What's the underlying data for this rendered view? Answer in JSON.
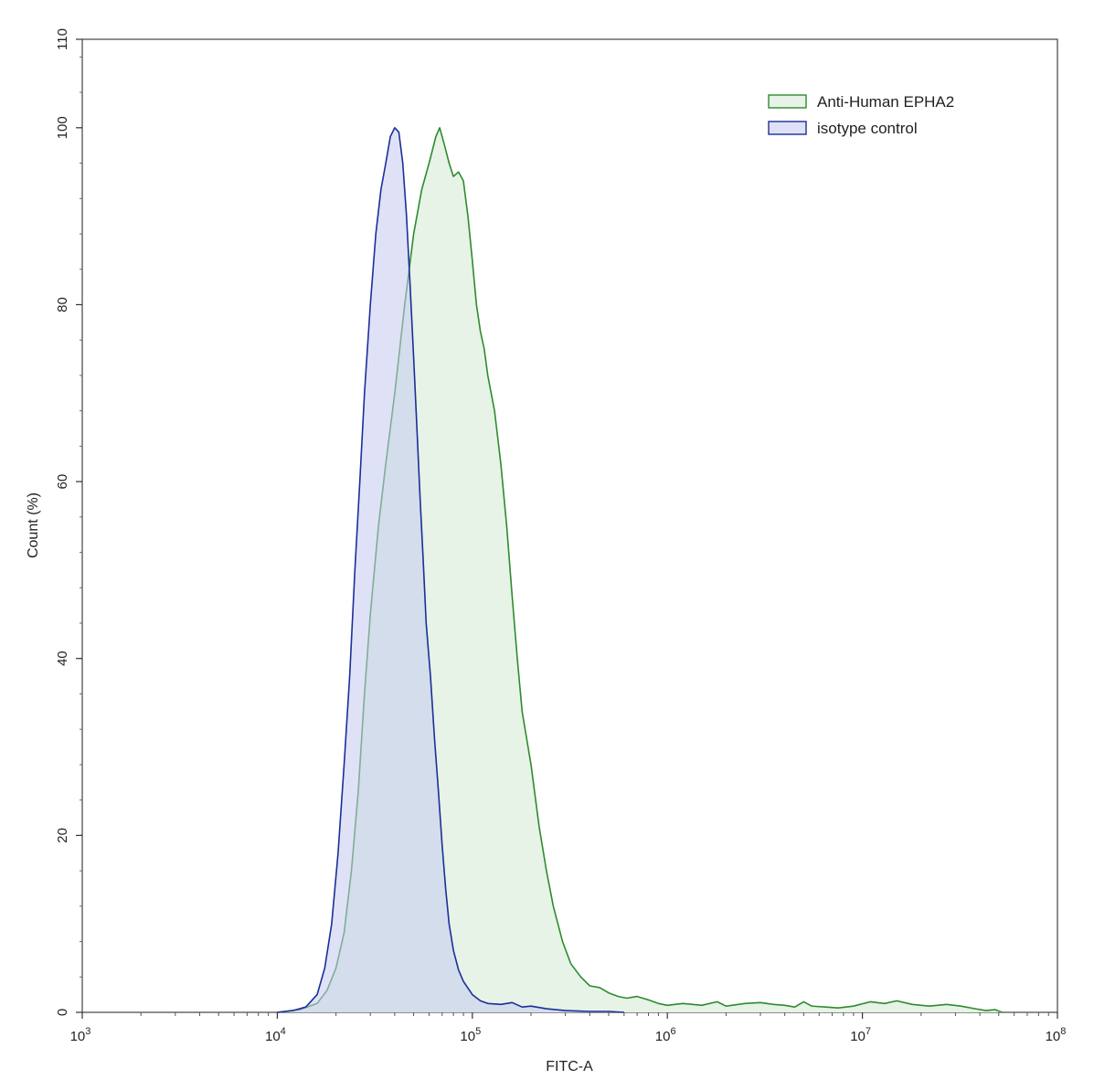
{
  "chart_data": {
    "type": "area",
    "title": "",
    "xlabel": "FITC-A",
    "ylabel": "Count  (%)",
    "x_scale": "log",
    "xlim": [
      1000,
      100000000
    ],
    "ylim": [
      0,
      110
    ],
    "x_ticks": [
      {
        "value": 1000,
        "base": "10",
        "exp": "3"
      },
      {
        "value": 10000,
        "base": "10",
        "exp": "4"
      },
      {
        "value": 100000,
        "base": "10",
        "exp": "5"
      },
      {
        "value": 1000000,
        "base": "10",
        "exp": "6"
      },
      {
        "value": 10000000,
        "base": "10",
        "exp": "7"
      },
      {
        "value": 100000000,
        "base": "10",
        "exp": "8"
      }
    ],
    "y_ticks": [
      0,
      20,
      40,
      60,
      80,
      100,
      110
    ],
    "grid": false,
    "legend_position": "top-right",
    "series": [
      {
        "name": "Anti-Human EPHA2",
        "stroke": "#2e8b2e",
        "fill": "#e6f3e6",
        "points": [
          [
            10000,
            0
          ],
          [
            13000,
            0.3
          ],
          [
            16000,
            1.0
          ],
          [
            18000,
            2.5
          ],
          [
            20000,
            5
          ],
          [
            22000,
            9
          ],
          [
            24000,
            16
          ],
          [
            26000,
            25
          ],
          [
            28000,
            36
          ],
          [
            30000,
            45
          ],
          [
            33000,
            55
          ],
          [
            36000,
            62
          ],
          [
            40000,
            70
          ],
          [
            45000,
            80
          ],
          [
            50000,
            88
          ],
          [
            55000,
            93
          ],
          [
            60000,
            96
          ],
          [
            65000,
            99
          ],
          [
            68000,
            100
          ],
          [
            72000,
            98
          ],
          [
            76000,
            96
          ],
          [
            80000,
            94.5
          ],
          [
            85000,
            95
          ],
          [
            90000,
            94
          ],
          [
            95000,
            90
          ],
          [
            100000,
            85
          ],
          [
            105000,
            80
          ],
          [
            110000,
            77
          ],
          [
            115000,
            75
          ],
          [
            120000,
            72
          ],
          [
            130000,
            68
          ],
          [
            140000,
            62
          ],
          [
            150000,
            55
          ],
          [
            160000,
            47
          ],
          [
            170000,
            40
          ],
          [
            180000,
            34
          ],
          [
            200000,
            28
          ],
          [
            220000,
            21
          ],
          [
            240000,
            16
          ],
          [
            260000,
            12
          ],
          [
            290000,
            8
          ],
          [
            320000,
            5.5
          ],
          [
            360000,
            4
          ],
          [
            400000,
            3
          ],
          [
            450000,
            2.8
          ],
          [
            500000,
            2.2
          ],
          [
            560000,
            1.8
          ],
          [
            620000,
            1.6
          ],
          [
            700000,
            1.8
          ],
          [
            800000,
            1.4
          ],
          [
            900000,
            1.0
          ],
          [
            1000000,
            0.8
          ],
          [
            1200000,
            1.0
          ],
          [
            1500000,
            0.8
          ],
          [
            1800000,
            1.2
          ],
          [
            2000000,
            0.7
          ],
          [
            2500000,
            1.0
          ],
          [
            3000000,
            1.1
          ],
          [
            3500000,
            0.9
          ],
          [
            4000000,
            0.8
          ],
          [
            4500000,
            0.6
          ],
          [
            5000000,
            1.2
          ],
          [
            5500000,
            0.7
          ],
          [
            6500000,
            0.6
          ],
          [
            7500000,
            0.5
          ],
          [
            9000000,
            0.7
          ],
          [
            11000000,
            1.2
          ],
          [
            13000000,
            1.0
          ],
          [
            15000000,
            1.3
          ],
          [
            18000000,
            0.9
          ],
          [
            22000000,
            0.7
          ],
          [
            27000000,
            0.9
          ],
          [
            32000000,
            0.7
          ],
          [
            38000000,
            0.4
          ],
          [
            43000000,
            0.2
          ],
          [
            48000000,
            0.3
          ],
          [
            52000000,
            0
          ]
        ]
      },
      {
        "name": "isotype control",
        "stroke": "#1a2f9a",
        "fill": "rgba(196,202,238,0.55)",
        "points": [
          [
            10000,
            0
          ],
          [
            12000,
            0.2
          ],
          [
            14000,
            0.6
          ],
          [
            16000,
            2.0
          ],
          [
            17500,
            5
          ],
          [
            19000,
            10
          ],
          [
            20500,
            18
          ],
          [
            22000,
            28
          ],
          [
            23500,
            38
          ],
          [
            25000,
            50
          ],
          [
            26500,
            60
          ],
          [
            28000,
            70
          ],
          [
            30000,
            80
          ],
          [
            32000,
            88
          ],
          [
            34000,
            93
          ],
          [
            36000,
            96
          ],
          [
            38000,
            99
          ],
          [
            40000,
            100
          ],
          [
            42000,
            99.5
          ],
          [
            44000,
            96
          ],
          [
            46000,
            90
          ],
          [
            48000,
            82
          ],
          [
            50000,
            74
          ],
          [
            52000,
            66
          ],
          [
            54000,
            58
          ],
          [
            56000,
            51
          ],
          [
            58000,
            44
          ],
          [
            61000,
            38
          ],
          [
            64000,
            31
          ],
          [
            67000,
            25
          ],
          [
            70000,
            19
          ],
          [
            73000,
            14
          ],
          [
            76000,
            10
          ],
          [
            80000,
            7
          ],
          [
            85000,
            4.8
          ],
          [
            90000,
            3.5
          ],
          [
            100000,
            2.0
          ],
          [
            110000,
            1.3
          ],
          [
            120000,
            1.0
          ],
          [
            140000,
            0.9
          ],
          [
            160000,
            1.1
          ],
          [
            180000,
            0.6
          ],
          [
            200000,
            0.7
          ],
          [
            240000,
            0.4
          ],
          [
            300000,
            0.2
          ],
          [
            400000,
            0.1
          ],
          [
            500000,
            0.1
          ],
          [
            600000,
            0
          ]
        ]
      }
    ]
  }
}
